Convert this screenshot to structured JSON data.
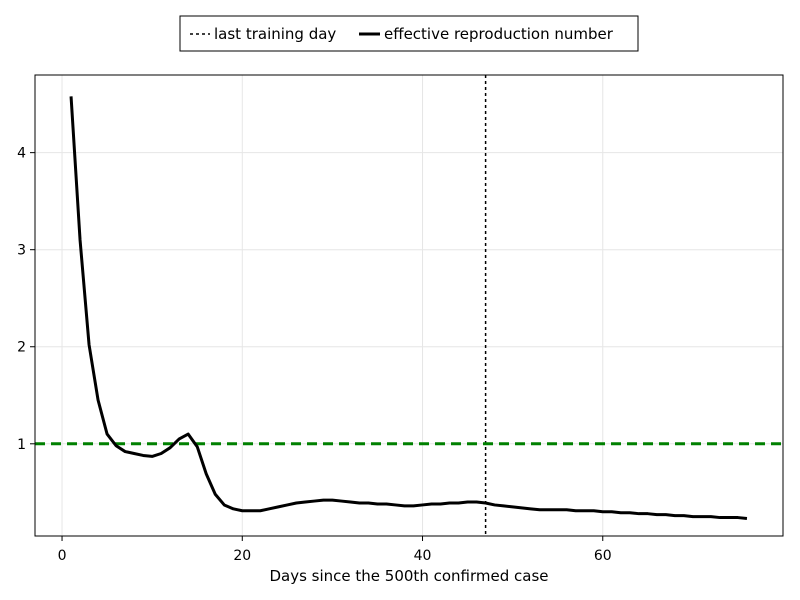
{
  "chart_data": {
    "type": "line",
    "title": "",
    "xlabel": "Days since the 500th confirmed case",
    "ylabel": "",
    "xlim": [
      -3,
      80
    ],
    "ylim": [
      0.05,
      4.8
    ],
    "xticks": [
      0,
      20,
      40,
      60
    ],
    "yticks": [
      1,
      2,
      3,
      4
    ],
    "grid": true,
    "legend_position": "top-center",
    "series": [
      {
        "name": "effective reproduction number",
        "color": "#000000",
        "style": "solid",
        "x": [
          1,
          2,
          3,
          4,
          5,
          6,
          7,
          8,
          9,
          10,
          11,
          12,
          13,
          14,
          15,
          16,
          17,
          18,
          19,
          20,
          21,
          22,
          23,
          24,
          25,
          26,
          27,
          28,
          29,
          30,
          31,
          32,
          33,
          34,
          35,
          36,
          37,
          38,
          39,
          40,
          41,
          42,
          43,
          44,
          45,
          46,
          47,
          48,
          49,
          50,
          51,
          52,
          53,
          54,
          55,
          56,
          57,
          58,
          59,
          60,
          61,
          62,
          63,
          64,
          65,
          66,
          67,
          68,
          69,
          70,
          71,
          72,
          73,
          74,
          75,
          76
        ],
        "y": [
          4.58,
          3.1,
          2.02,
          1.45,
          1.1,
          0.98,
          0.92,
          0.9,
          0.88,
          0.87,
          0.9,
          0.96,
          1.05,
          1.1,
          0.97,
          0.69,
          0.48,
          0.37,
          0.33,
          0.31,
          0.31,
          0.31,
          0.33,
          0.35,
          0.37,
          0.39,
          0.4,
          0.41,
          0.42,
          0.42,
          0.41,
          0.4,
          0.39,
          0.39,
          0.38,
          0.38,
          0.37,
          0.36,
          0.36,
          0.37,
          0.38,
          0.38,
          0.39,
          0.39,
          0.4,
          0.4,
          0.39,
          0.37,
          0.36,
          0.35,
          0.34,
          0.33,
          0.32,
          0.32,
          0.32,
          0.32,
          0.31,
          0.31,
          0.31,
          0.3,
          0.3,
          0.29,
          0.29,
          0.28,
          0.28,
          0.27,
          0.27,
          0.26,
          0.26,
          0.25,
          0.25,
          0.25,
          0.24,
          0.24,
          0.24,
          0.23
        ]
      }
    ],
    "reference_lines": [
      {
        "name": "last training day",
        "orientation": "vertical",
        "value": 47,
        "color": "#000000",
        "style": "dotted"
      },
      {
        "orientation": "horizontal",
        "value": 1,
        "color": "#008000",
        "style": "dashed"
      }
    ]
  }
}
